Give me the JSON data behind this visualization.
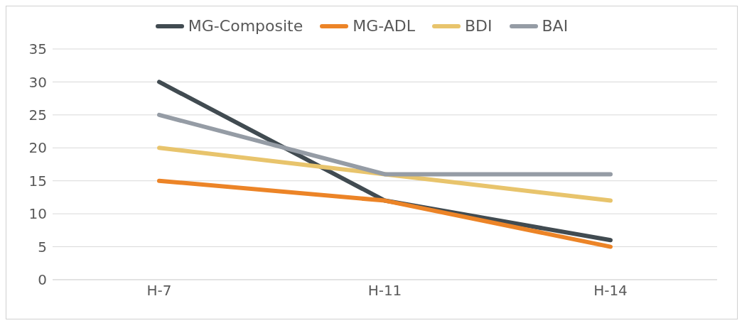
{
  "chart_data": {
    "type": "line",
    "categories": [
      "H-7",
      "H-11",
      "H-14"
    ],
    "series": [
      {
        "name": "MG-Composite",
        "color": "#414b51",
        "values": [
          30,
          12,
          6
        ]
      },
      {
        "name": "MG-ADL",
        "color": "#ec8427",
        "values": [
          15,
          12,
          5
        ]
      },
      {
        "name": "BDI",
        "color": "#e8c46c",
        "values": [
          20,
          16,
          12
        ]
      },
      {
        "name": "BAI",
        "color": "#959ca5",
        "values": [
          25,
          16,
          16
        ]
      }
    ],
    "ylim": [
      0,
      35
    ],
    "yticks": [
      0,
      5,
      10,
      15,
      20,
      25,
      30,
      35
    ],
    "grid": "y",
    "legend": "top",
    "marker": "none",
    "line_style": "solid"
  }
}
